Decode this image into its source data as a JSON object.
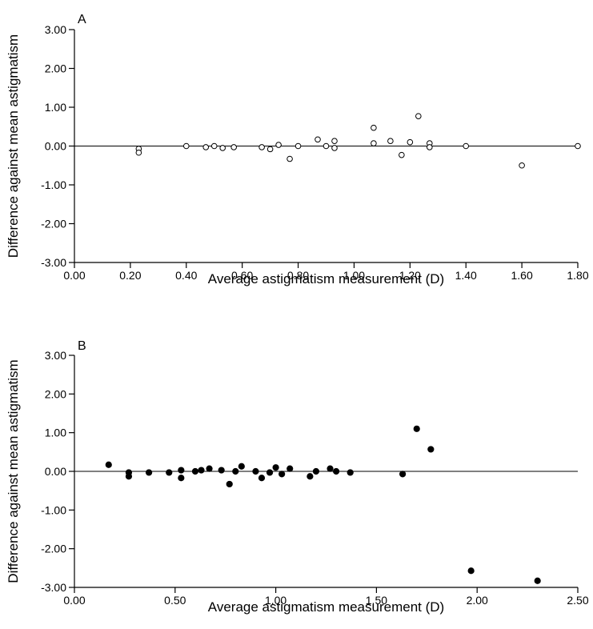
{
  "chart_data": [
    {
      "type": "scatter",
      "panel_label": "A",
      "title": "",
      "xlabel": "Average astigmatism measurement (D)",
      "ylabel": "Difference against mean astigmatism",
      "xlim": [
        0,
        1.8
      ],
      "ylim": [
        -3,
        3
      ],
      "x_ticks": [
        0,
        0.2,
        0.4,
        0.6,
        0.8,
        1.0,
        1.2,
        1.4,
        1.6,
        1.8
      ],
      "x_tick_labels": [
        "0.00",
        "0.20",
        "0.40",
        "0.60",
        "0.80",
        "1.00",
        "1.20",
        "1.40",
        "1.60",
        "1.80"
      ],
      "y_ticks": [
        3,
        2,
        1,
        0,
        -1,
        -2,
        -3
      ],
      "y_tick_labels": [
        "3.00",
        "2.00",
        "1.00",
        "0.00",
        "-1.00",
        "-2.00",
        "-3.00"
      ],
      "marker": "open-circle",
      "reference_line_y": 0,
      "points": [
        {
          "x": 0.23,
          "y": -0.07
        },
        {
          "x": 0.23,
          "y": -0.17
        },
        {
          "x": 0.4,
          "y": 0.0
        },
        {
          "x": 0.47,
          "y": -0.03
        },
        {
          "x": 0.5,
          "y": 0.0
        },
        {
          "x": 0.53,
          "y": -0.05
        },
        {
          "x": 0.57,
          "y": -0.03
        },
        {
          "x": 0.67,
          "y": -0.03
        },
        {
          "x": 0.7,
          "y": -0.08
        },
        {
          "x": 0.73,
          "y": 0.03
        },
        {
          "x": 0.77,
          "y": -0.33
        },
        {
          "x": 0.8,
          "y": 0.0
        },
        {
          "x": 0.87,
          "y": 0.17
        },
        {
          "x": 0.9,
          "y": 0.0
        },
        {
          "x": 0.93,
          "y": 0.13
        },
        {
          "x": 0.93,
          "y": -0.05
        },
        {
          "x": 1.07,
          "y": 0.47
        },
        {
          "x": 1.07,
          "y": 0.07
        },
        {
          "x": 1.13,
          "y": 0.13
        },
        {
          "x": 1.17,
          "y": -0.23
        },
        {
          "x": 1.2,
          "y": 0.1
        },
        {
          "x": 1.23,
          "y": 0.77
        },
        {
          "x": 1.27,
          "y": 0.07
        },
        {
          "x": 1.27,
          "y": -0.03
        },
        {
          "x": 1.4,
          "y": 0.0
        },
        {
          "x": 1.6,
          "y": -0.5
        },
        {
          "x": 1.8,
          "y": 0.0
        }
      ]
    },
    {
      "type": "scatter",
      "panel_label": "B",
      "title": "",
      "xlabel": "Average astigmatism measurement (D)",
      "ylabel": "Difference against mean astigmatism",
      "xlim": [
        0,
        2.5
      ],
      "ylim": [
        -3,
        3
      ],
      "x_ticks": [
        0,
        0.5,
        1.0,
        1.5,
        2.0,
        2.5
      ],
      "x_tick_labels": [
        "0.00",
        "0.50",
        "1.00",
        "1.50",
        "2.00",
        "2.50"
      ],
      "y_ticks": [
        3,
        2,
        1,
        0,
        -1,
        -2,
        -3
      ],
      "y_tick_labels": [
        "3.00",
        "2.00",
        "1.00",
        "0.00",
        "-1.00",
        "-2.00",
        "-3.00"
      ],
      "marker": "filled-circle",
      "reference_line_y": 0,
      "points": [
        {
          "x": 0.17,
          "y": 0.17
        },
        {
          "x": 0.27,
          "y": -0.03
        },
        {
          "x": 0.27,
          "y": -0.13
        },
        {
          "x": 0.37,
          "y": -0.03
        },
        {
          "x": 0.47,
          "y": -0.03
        },
        {
          "x": 0.53,
          "y": 0.03
        },
        {
          "x": 0.53,
          "y": -0.17
        },
        {
          "x": 0.6,
          "y": 0.0
        },
        {
          "x": 0.63,
          "y": 0.03
        },
        {
          "x": 0.67,
          "y": 0.07
        },
        {
          "x": 0.73,
          "y": 0.03
        },
        {
          "x": 0.77,
          "y": -0.33
        },
        {
          "x": 0.8,
          "y": 0.0
        },
        {
          "x": 0.83,
          "y": 0.13
        },
        {
          "x": 0.9,
          "y": 0.0
        },
        {
          "x": 0.93,
          "y": -0.17
        },
        {
          "x": 0.97,
          "y": -0.03
        },
        {
          "x": 1.0,
          "y": 0.1
        },
        {
          "x": 1.03,
          "y": -0.07
        },
        {
          "x": 1.07,
          "y": 0.07
        },
        {
          "x": 1.17,
          "y": -0.13
        },
        {
          "x": 1.2,
          "y": 0.0
        },
        {
          "x": 1.27,
          "y": 0.07
        },
        {
          "x": 1.3,
          "y": 0.0
        },
        {
          "x": 1.37,
          "y": -0.03
        },
        {
          "x": 1.63,
          "y": -0.07
        },
        {
          "x": 1.7,
          "y": 1.1
        },
        {
          "x": 1.77,
          "y": 0.57
        },
        {
          "x": 1.97,
          "y": -2.57
        },
        {
          "x": 2.3,
          "y": -2.83
        }
      ]
    }
  ]
}
